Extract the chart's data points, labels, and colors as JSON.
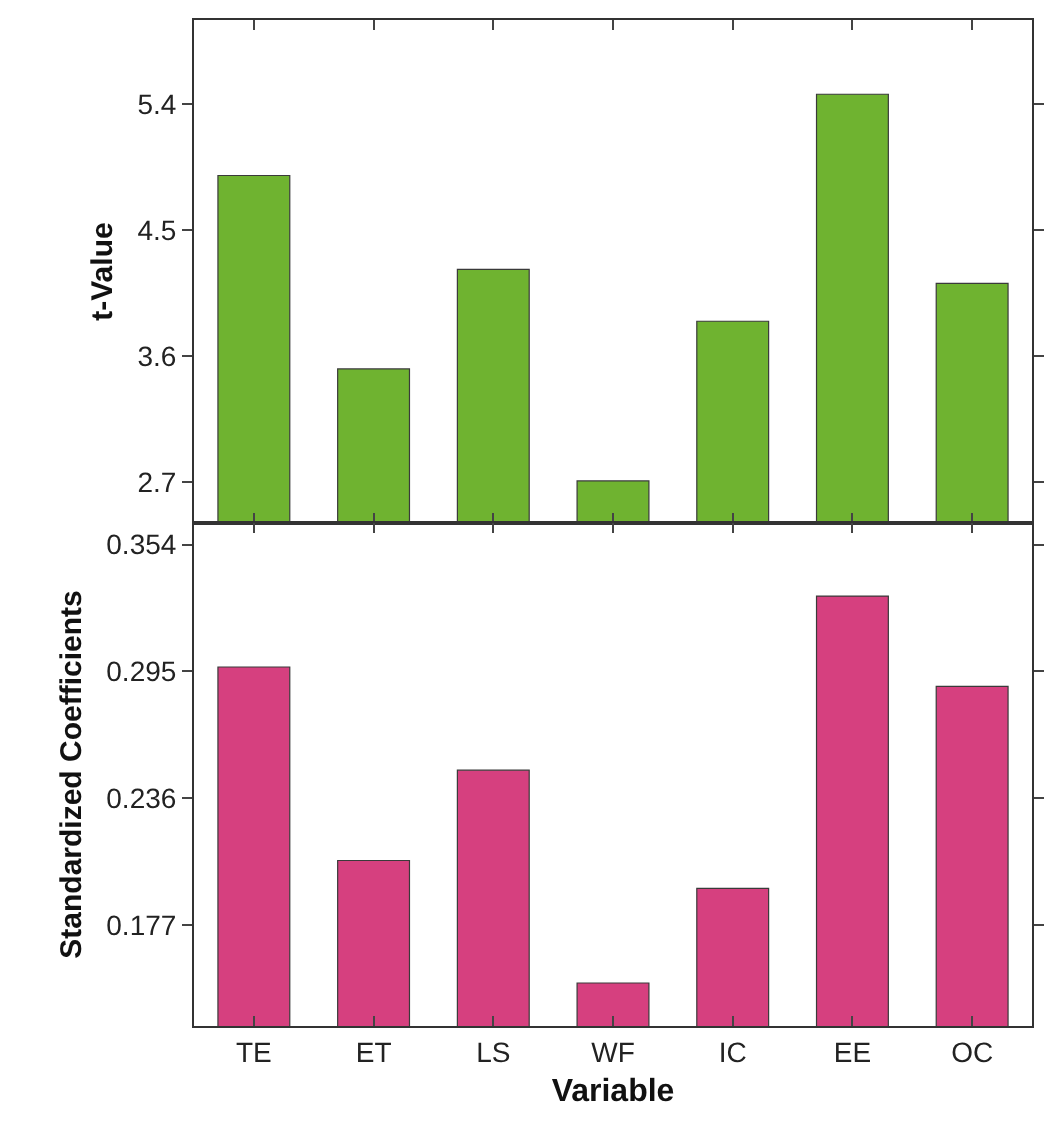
{
  "chart_data": [
    {
      "type": "bar",
      "ylabel": "t-Value",
      "categories": [
        null,
        null,
        null,
        null,
        null,
        null,
        null
      ],
      "series": [
        {
          "color": "#6fb330",
          "values": [
            4.89,
            3.51,
            4.22,
            2.71,
            3.85,
            5.47,
            4.12
          ]
        }
      ],
      "ylim": [
        2.41,
        6.0
      ],
      "yticks": [
        2.7,
        3.6,
        4.5,
        5.4
      ],
      "tick_labels": "y"
    },
    {
      "type": "bar",
      "xlabel": "Variable",
      "ylabel": "Standardized Coefficients",
      "categories": [
        "TE",
        "ET",
        "LS",
        "WF",
        "IC",
        "EE",
        "OC"
      ],
      "series": [
        {
          "color": "#d6407f",
          "values": [
            0.297,
            0.207,
            0.249,
            0.15,
            0.194,
            0.33,
            0.288
          ]
        }
      ],
      "ylim": [
        0.13,
        0.364
      ],
      "yticks": [
        0.354,
        0.295,
        0.236,
        0.177
      ]
    }
  ]
}
